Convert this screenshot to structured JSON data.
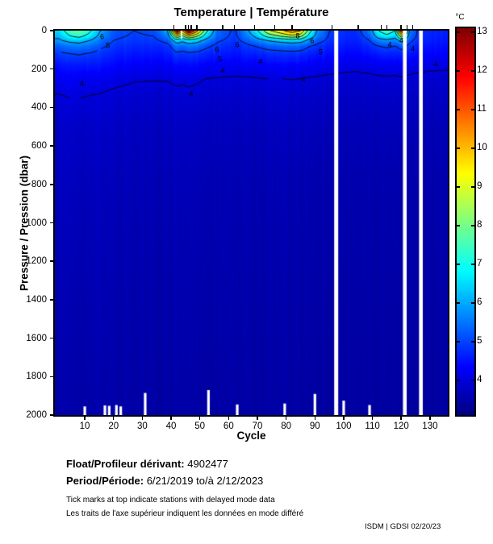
{
  "title": "Temperature | Température",
  "axes": {
    "x_label": "Cycle",
    "y_label": "Pressure / Pression (dbar)",
    "x_ticks": [
      10,
      20,
      30,
      40,
      50,
      60,
      70,
      80,
      90,
      100,
      110,
      120,
      130
    ],
    "y_ticks": [
      0,
      200,
      400,
      600,
      800,
      1000,
      1200,
      1400,
      1600,
      1800,
      2000
    ]
  },
  "colorbar": {
    "label": "°C",
    "ticks": [
      13,
      12,
      11,
      10,
      9,
      8,
      7,
      6,
      5,
      4
    ],
    "min": 3.1,
    "max": 13.1
  },
  "footer": {
    "float_label": "Float/Profileur dérivant:",
    "float_value": "4902477",
    "period_label": "Period/Période:",
    "period_value": "6/21/2019 to/à 2/12/2023",
    "note_en": "Tick marks at top indicate stations with delayed mode data",
    "note_fr": "Les traits de l'axe supérieur indiquent les données en mode différé"
  },
  "credit": "ISDM | GDSI 02/20/23",
  "chart_data": {
    "type": "heatmap",
    "title": "Temperature | Température",
    "xlabel": "Cycle",
    "ylabel": "Pressure / Pression (dbar)",
    "x_range": [
      1,
      136
    ],
    "y_range": [
      0,
      2000
    ],
    "color": {
      "label": "°C",
      "min": 3.1,
      "max": 13.1,
      "colormap": "jet"
    },
    "depth_levels": [
      0,
      25,
      50,
      80,
      120,
      180,
      250,
      350,
      500,
      800,
      1300,
      2000
    ],
    "profiles": [
      {
        "c": 1,
        "t": [
          6.5,
          6.2,
          5.9,
          5.3,
          4.9,
          4.5,
          4.2,
          3.95,
          3.8,
          3.7,
          3.6,
          3.5
        ]
      },
      {
        "c": 5,
        "t": [
          7.6,
          7.1,
          6.3,
          5.5,
          5.0,
          4.55,
          4.25,
          4.0,
          3.82,
          3.7,
          3.6,
          3.5
        ]
      },
      {
        "c": 8,
        "t": [
          8.0,
          7.4,
          6.4,
          5.6,
          5.05,
          4.6,
          4.25,
          4.0,
          3.82,
          3.7,
          3.6,
          3.5
        ]
      },
      {
        "c": 12,
        "t": [
          7.1,
          6.7,
          6.0,
          5.4,
          4.95,
          4.55,
          4.2,
          3.97,
          3.8,
          3.68,
          3.6,
          3.5
        ]
      },
      {
        "c": 15,
        "t": [
          6.1,
          5.9,
          5.5,
          5.15,
          4.85,
          4.5,
          4.18,
          3.95,
          3.8,
          3.68,
          3.6,
          3.5
        ]
      },
      {
        "c": 20,
        "t": [
          5.2,
          5.12,
          5.0,
          4.85,
          4.65,
          4.38,
          4.1,
          3.9,
          3.77,
          3.65,
          3.57,
          3.48
        ]
      },
      {
        "c": 27,
        "t": [
          5.0,
          4.95,
          4.87,
          4.72,
          4.55,
          4.3,
          4.03,
          3.87,
          3.74,
          3.64,
          3.56,
          3.48
        ]
      },
      {
        "c": 34,
        "t": [
          5.1,
          5.02,
          4.9,
          4.73,
          4.55,
          4.28,
          4.02,
          3.86,
          3.73,
          3.63,
          3.55,
          3.47
        ]
      },
      {
        "c": 39,
        "t": [
          6.1,
          5.7,
          5.2,
          4.85,
          4.6,
          4.3,
          4.02,
          3.87,
          3.74,
          3.63,
          3.55,
          3.47
        ]
      },
      {
        "c": 42,
        "t": [
          12.7,
          9.2,
          6.6,
          5.5,
          4.9,
          4.4,
          4.07,
          3.9,
          3.75,
          3.64,
          3.56,
          3.48
        ]
      },
      {
        "c": 44,
        "t": [
          10.0,
          8.0,
          6.2,
          5.35,
          4.82,
          4.38,
          4.05,
          3.88,
          3.74,
          3.63,
          3.55,
          3.47
        ]
      },
      {
        "c": 46,
        "t": [
          12.8,
          9.6,
          6.7,
          5.55,
          4.9,
          4.42,
          4.08,
          3.9,
          3.75,
          3.64,
          3.56,
          3.48
        ]
      },
      {
        "c": 49,
        "t": [
          10.4,
          8.4,
          6.4,
          5.45,
          4.85,
          4.38,
          4.05,
          3.87,
          3.73,
          3.62,
          3.54,
          3.46
        ]
      },
      {
        "c": 52,
        "t": [
          7.4,
          6.7,
          5.8,
          5.15,
          4.72,
          4.32,
          4.0,
          3.85,
          3.72,
          3.62,
          3.54,
          3.46
        ]
      },
      {
        "c": 56,
        "t": [
          5.4,
          5.3,
          5.1,
          4.85,
          4.62,
          4.28,
          3.98,
          3.83,
          3.7,
          3.6,
          3.53,
          3.46
        ]
      },
      {
        "c": 62,
        "t": [
          4.9,
          4.87,
          4.8,
          4.65,
          4.48,
          4.22,
          3.95,
          3.8,
          3.68,
          3.58,
          3.52,
          3.45
        ]
      },
      {
        "c": 66,
        "t": [
          5.7,
          5.5,
          5.2,
          4.85,
          4.6,
          4.25,
          3.96,
          3.81,
          3.68,
          3.58,
          3.52,
          3.45
        ]
      },
      {
        "c": 70,
        "t": [
          6.9,
          6.4,
          5.7,
          5.05,
          4.68,
          4.28,
          3.98,
          3.82,
          3.69,
          3.58,
          3.52,
          3.45
        ]
      },
      {
        "c": 74,
        "t": [
          8.9,
          7.6,
          6.1,
          5.25,
          4.75,
          4.32,
          4.0,
          3.83,
          3.7,
          3.59,
          3.52,
          3.45
        ]
      },
      {
        "c": 78,
        "t": [
          9.7,
          8.3,
          6.35,
          5.35,
          4.78,
          4.33,
          4.0,
          3.83,
          3.7,
          3.59,
          3.52,
          3.45
        ]
      },
      {
        "c": 82,
        "t": [
          10.7,
          8.9,
          6.55,
          5.42,
          4.82,
          4.34,
          4.01,
          3.83,
          3.7,
          3.59,
          3.52,
          3.45
        ]
      },
      {
        "c": 85,
        "t": [
          10.1,
          8.5,
          6.45,
          5.35,
          4.78,
          4.32,
          4.0,
          3.82,
          3.69,
          3.58,
          3.52,
          3.45
        ]
      },
      {
        "c": 88,
        "t": [
          7.4,
          6.8,
          5.8,
          5.05,
          4.62,
          4.27,
          3.97,
          3.81,
          3.68,
          3.57,
          3.51,
          3.44
        ]
      },
      {
        "c": 91,
        "t": [
          5.8,
          5.6,
          5.25,
          4.85,
          4.57,
          4.22,
          3.95,
          3.8,
          3.67,
          3.56,
          3.5,
          3.44
        ]
      },
      {
        "c": 95,
        "t": [
          5.0,
          4.95,
          4.85,
          4.68,
          4.48,
          4.17,
          3.92,
          3.78,
          3.66,
          3.55,
          3.5,
          3.43
        ]
      },
      {
        "c": 99,
        "t": [
          4.8,
          4.76,
          4.7,
          4.57,
          4.42,
          4.13,
          3.9,
          3.77,
          3.65,
          3.55,
          3.49,
          3.43
        ]
      },
      {
        "c": 104,
        "t": [
          4.7,
          4.67,
          4.62,
          4.5,
          4.37,
          4.11,
          3.88,
          3.76,
          3.64,
          3.54,
          3.49,
          3.43
        ]
      },
      {
        "c": 109,
        "t": [
          5.5,
          5.3,
          5.0,
          4.72,
          4.48,
          4.16,
          3.9,
          3.77,
          3.65,
          3.54,
          3.49,
          3.43
        ]
      },
      {
        "c": 112,
        "t": [
          7.0,
          6.5,
          5.65,
          5.0,
          4.62,
          4.22,
          3.93,
          3.78,
          3.66,
          3.55,
          3.49,
          3.43
        ]
      },
      {
        "c": 115,
        "t": [
          7.5,
          6.9,
          5.85,
          5.1,
          4.67,
          4.24,
          3.94,
          3.79,
          3.66,
          3.55,
          3.49,
          3.43
        ]
      },
      {
        "c": 118,
        "t": [
          7.0,
          6.45,
          5.65,
          5.0,
          4.62,
          4.22,
          3.93,
          3.78,
          3.66,
          3.55,
          3.49,
          3.43
        ]
      },
      {
        "c": 120,
        "t": [
          11.9,
          8.9,
          6.3,
          5.25,
          4.72,
          4.27,
          3.96,
          3.8,
          3.67,
          3.55,
          3.5,
          3.43
        ]
      },
      {
        "c": 123,
        "t": [
          5.6,
          5.45,
          5.15,
          4.82,
          4.55,
          4.18,
          3.92,
          3.77,
          3.65,
          3.54,
          3.49,
          3.42
        ]
      },
      {
        "c": 126,
        "t": [
          4.9,
          4.86,
          4.8,
          4.62,
          4.43,
          4.14,
          3.89,
          3.76,
          3.64,
          3.54,
          3.48,
          3.42
        ]
      },
      {
        "c": 130,
        "t": [
          4.7,
          4.67,
          4.62,
          4.5,
          4.36,
          4.1,
          3.87,
          3.75,
          3.63,
          3.53,
          3.48,
          3.42
        ]
      },
      {
        "c": 136,
        "t": [
          4.6,
          4.58,
          4.54,
          4.45,
          4.32,
          4.08,
          3.86,
          3.74,
          3.62,
          3.52,
          3.47,
          3.41
        ]
      }
    ],
    "contour_levels": [
      4,
      5,
      6,
      7,
      8,
      9,
      10,
      11,
      12
    ],
    "contour_labels": [
      {
        "level": 6,
        "cycle": 16,
        "depth": 35
      },
      {
        "level": 5,
        "cycle": 18,
        "depth": 80
      },
      {
        "level": 4,
        "cycle": 9,
        "depth": 275
      },
      {
        "level": 4,
        "cycle": 47,
        "depth": 330
      },
      {
        "level": 6,
        "cycle": 56,
        "depth": 100
      },
      {
        "level": 5,
        "cycle": 57,
        "depth": 150
      },
      {
        "level": 4,
        "cycle": 58,
        "depth": 210
      },
      {
        "level": 6,
        "cycle": 63,
        "depth": 75
      },
      {
        "level": 4,
        "cycle": 71,
        "depth": 165
      },
      {
        "level": 8,
        "cycle": 84,
        "depth": 30
      },
      {
        "level": 6,
        "cycle": 89,
        "depth": 55
      },
      {
        "level": 5,
        "cycle": 92,
        "depth": 115
      },
      {
        "level": 4,
        "cycle": 86,
        "depth": 255
      },
      {
        "level": 4,
        "cycle": 116,
        "depth": 75
      },
      {
        "level": 4,
        "cycle": 120,
        "depth": 55
      },
      {
        "level": 4,
        "cycle": 124,
        "depth": 95
      },
      {
        "level": 4,
        "cycle": 132,
        "depth": 175
      }
    ],
    "delayed_mode_tick_cycles": [
      41,
      45,
      46,
      47,
      49,
      58,
      62,
      69,
      76,
      82,
      96,
      105,
      113,
      115,
      120,
      122,
      124
    ],
    "missing_regions": [
      {
        "c0": 96.7,
        "c1": 98.1,
        "d0": 0,
        "d1": 2000
      },
      {
        "c0": 120.6,
        "c1": 121.9,
        "d0": 0,
        "d1": 2000
      },
      {
        "c0": 126.2,
        "c1": 127.5,
        "d0": 0,
        "d1": 2000
      },
      {
        "c0": 43.4,
        "c1": 43.9,
        "d0": 0,
        "d1": 42
      }
    ],
    "shallow_profiles": [
      {
        "cycle": 10,
        "max_depth": 1955
      },
      {
        "cycle": 17,
        "max_depth": 1950
      },
      {
        "cycle": 18.5,
        "max_depth": 1952
      },
      {
        "cycle": 21,
        "max_depth": 1948
      },
      {
        "cycle": 22.5,
        "max_depth": 1955
      },
      {
        "cycle": 31,
        "max_depth": 1885
      },
      {
        "cycle": 53,
        "max_depth": 1870
      },
      {
        "cycle": 63,
        "max_depth": 1945
      },
      {
        "cycle": 79.5,
        "max_depth": 1940
      },
      {
        "cycle": 90,
        "max_depth": 1890
      },
      {
        "cycle": 100,
        "max_depth": 1925
      },
      {
        "cycle": 109,
        "max_depth": 1948
      }
    ]
  }
}
